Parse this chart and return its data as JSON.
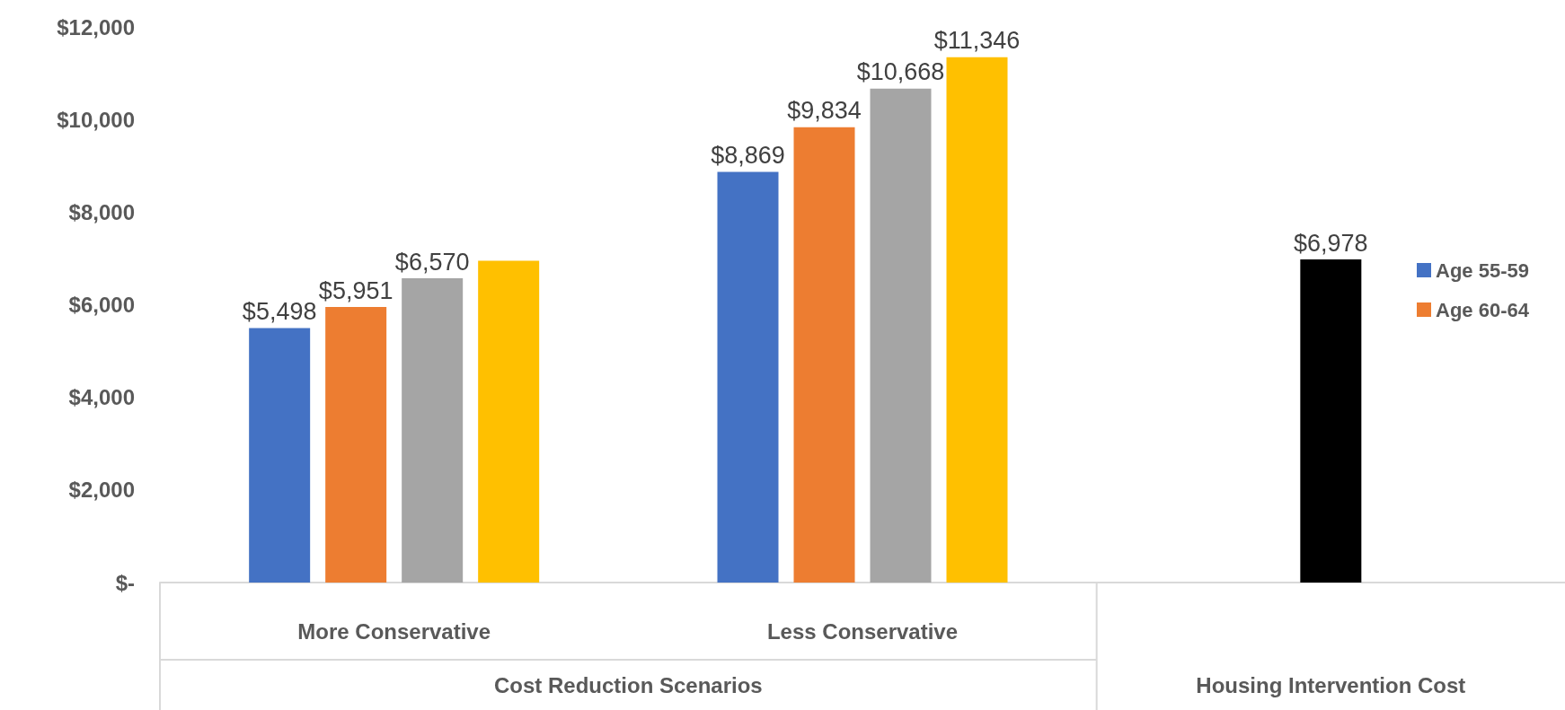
{
  "chart_data": {
    "type": "bar",
    "categories": [
      "More Conservative",
      "Less Conservative",
      null
    ],
    "series": [
      {
        "name": "Age 55-59",
        "color": "#4472c4",
        "values": [
          5498,
          8869,
          null
        ],
        "value_labels": [
          "$5,498",
          "$8,869",
          null
        ]
      },
      {
        "name": "Age 60-64",
        "color": "#ed7d31",
        "values": [
          5951,
          9834,
          null
        ],
        "value_labels": [
          "$5,951",
          "$9,834",
          null
        ]
      },
      {
        "color": "#a5a5a5",
        "values": [
          6570,
          10668,
          null
        ],
        "value_labels": [
          "$6,570",
          "$10,668",
          null
        ]
      },
      {
        "color": "#ffc000",
        "values": [
          6950,
          11346,
          null
        ],
        "value_labels": [
          null,
          "$11,346",
          null
        ]
      },
      {
        "color": "#000000",
        "values": [
          null,
          null,
          6978
        ],
        "value_labels": [
          null,
          null,
          "$6,978"
        ]
      }
    ],
    "annotations": [
      "Cost Reduction Scenarios",
      "Housing Intervention Cost"
    ],
    "ylim": [
      0,
      12000
    ],
    "yticks": [
      {
        "value": 0,
        "label": "$-"
      },
      {
        "value": 2000,
        "label": "$2,000"
      },
      {
        "value": 4000,
        "label": "$4,000"
      },
      {
        "value": 6000,
        "label": "$6,000"
      },
      {
        "value": 8000,
        "label": "$8,000"
      },
      {
        "value": 10000,
        "label": "$10,000"
      },
      {
        "value": 12000,
        "label": "$12,000"
      }
    ],
    "grid": false,
    "legend": "right"
  }
}
